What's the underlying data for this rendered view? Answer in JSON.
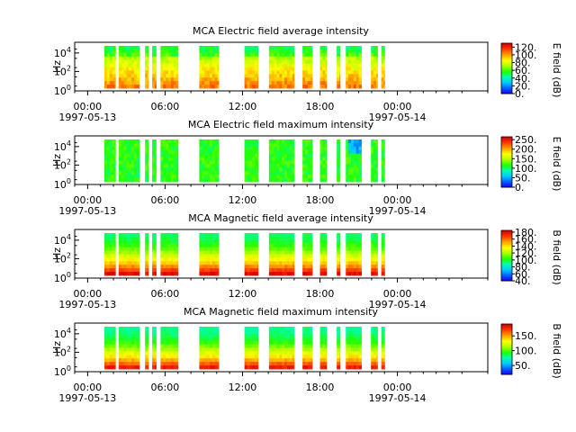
{
  "chart_data": [
    {
      "type": "heatmap",
      "title": "MCA  Electric field average intensity",
      "ylabel": "Hz",
      "yticks": [
        "10^0",
        "10^2",
        "10^4"
      ],
      "xticks": [
        "00:00",
        "06:00",
        "12:00",
        "18:00",
        "00:00"
      ],
      "xdates": [
        "1997-05-13",
        "1997-05-14"
      ],
      "colorbar_label": "E field (dB)",
      "colorbar_ticks": [
        "0.",
        "20.",
        "40.",
        "60.",
        "80.",
        "100.",
        "120."
      ],
      "clim": [
        0,
        130
      ],
      "style": "e_avg"
    },
    {
      "type": "heatmap",
      "title": "MCA  Electric field maximum intensity",
      "ylabel": "Hz",
      "yticks": [
        "10^0",
        "10^2",
        "10^4"
      ],
      "xticks": [
        "00:00",
        "06:00",
        "12:00",
        "18:00",
        "00:00"
      ],
      "xdates": [
        "1997-05-13",
        "1997-05-14"
      ],
      "colorbar_label": "E field (dB)",
      "colorbar_ticks": [
        "0.",
        "50.",
        "100.",
        "150.",
        "200.",
        "250."
      ],
      "clim": [
        0,
        265
      ],
      "style": "e_max"
    },
    {
      "type": "heatmap",
      "title": "MCA  Magnetic field average intensity",
      "ylabel": "Hz",
      "yticks": [
        "10^0",
        "10^2",
        "10^4"
      ],
      "xticks": [
        "00:00",
        "06:00",
        "12:00",
        "18:00",
        "00:00"
      ],
      "xdates": [
        "1997-05-13",
        "1997-05-14"
      ],
      "colorbar_label": "B field (dB)",
      "colorbar_ticks": [
        "40.",
        "60.",
        "80.",
        "100.",
        "120.",
        "140.",
        "160.",
        "180."
      ],
      "clim": [
        40,
        185
      ],
      "style": "b_avg"
    },
    {
      "type": "heatmap",
      "title": "MCA  Magnetic field maximum intensity",
      "ylabel": "Hz",
      "yticks": [
        "10^0",
        "10^2",
        "10^4"
      ],
      "xticks": [
        "00:00",
        "06:00",
        "12:00",
        "18:00",
        "00:00"
      ],
      "xdates": [
        "1997-05-13",
        "1997-05-14"
      ],
      "colorbar_label": "B field (dB)",
      "colorbar_ticks": [
        "50.",
        "100.",
        "150."
      ],
      "clim": [
        20,
        190
      ],
      "style": "b_max"
    }
  ],
  "time_axis": {
    "range_hours": [
      -1,
      31
    ],
    "data_segments_hours": [
      [
        1.3,
        2.15
      ],
      [
        2.4,
        4.0
      ],
      [
        4.45,
        4.7
      ],
      [
        5.0,
        5.3
      ],
      [
        5.65,
        7.0
      ],
      [
        8.65,
        10.15
      ],
      [
        12.15,
        13.2
      ],
      [
        14.05,
        16.0
      ],
      [
        16.65,
        17.4
      ],
      [
        18.0,
        18.5
      ],
      [
        19.3,
        19.55
      ],
      [
        20.0,
        21.2
      ],
      [
        21.95,
        22.45
      ],
      [
        22.75,
        23.0
      ]
    ]
  },
  "colormap": [
    "#1a00ff",
    "#0066ff",
    "#00ccff",
    "#00ffaa",
    "#22ff00",
    "#aaff00",
    "#ffff00",
    "#ffaa00",
    "#ff4400",
    "#dd0000"
  ]
}
